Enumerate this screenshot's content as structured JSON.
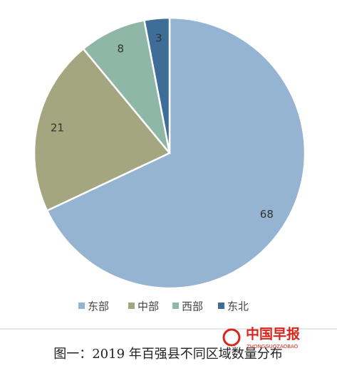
{
  "chart_data": {
    "type": "pie",
    "categories": [
      "东部",
      "中部",
      "西部",
      "东北"
    ],
    "values": [
      68,
      21,
      8,
      3
    ],
    "colors": [
      "#94b4d1",
      "#a4a67f",
      "#8fb7a7",
      "#3e6e97"
    ],
    "legend": "bottom",
    "caption": "图一：2019 年百强县不同区域数量分布"
  },
  "watermark": {
    "title": "中国早报",
    "subtitle": "ZHONGGUOZAOBAO"
  }
}
